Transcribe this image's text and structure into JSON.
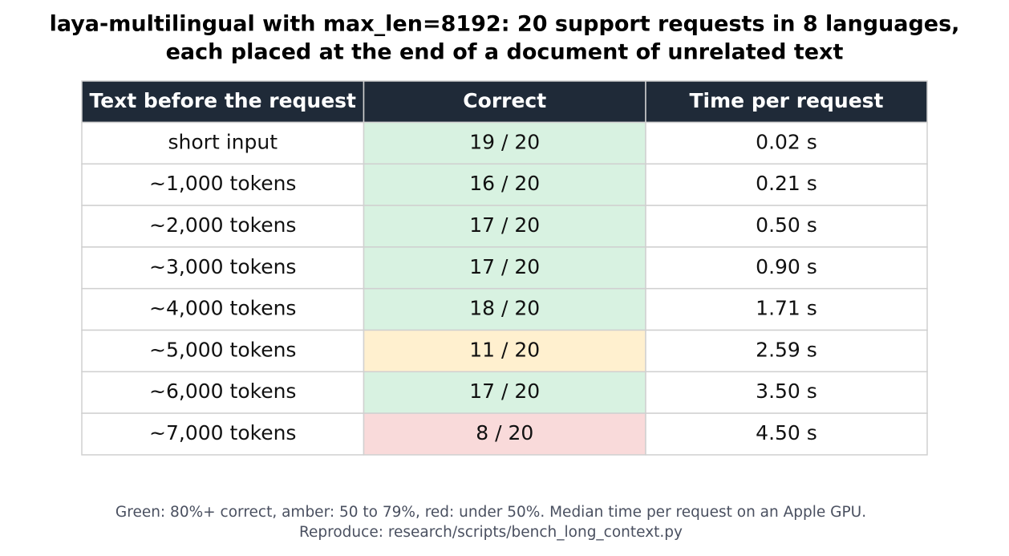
{
  "title": [
    "laya-multilingual with max_len=8192: 20 support requests in 8 languages,",
    "each placed at the end of a document of unrelated text"
  ],
  "table": {
    "header": [
      "Text before the request",
      "Correct",
      "Time per request"
    ],
    "header_color": "#1f2a38",
    "rows": [
      [
        "short input",
        "19 / 20",
        "0.02 s"
      ],
      [
        "~1,000 tokens",
        "16 / 20",
        "0.21 s"
      ],
      [
        "~2,000 tokens",
        "17 / 20",
        "0.50 s"
      ],
      [
        "~3,000 tokens",
        "17 / 20",
        "0.90 s"
      ],
      [
        "~4,000 tokens",
        "18 / 20",
        "1.71 s"
      ],
      [
        "~5,000 tokens",
        "11 / 20",
        "2.59 s"
      ],
      [
        "~6,000 tokens",
        "17 / 20",
        "3.50 s"
      ],
      [
        "~7,000 tokens",
        "8 / 20",
        "4.50 s"
      ]
    ],
    "correct_colors": [
      "#d8f2e1",
      "#d8f2e1",
      "#d8f2e1",
      "#d8f2e1",
      "#d8f2e1",
      "#fff0cf",
      "#d8f2e1",
      "#f9dada"
    ]
  },
  "footer": [
    "Green: 80%+ correct, amber: 50 to 79%, red: under 50%. Median time per request on an Apple GPU.",
    "Reproduce: research/scripts/bench_long_context.py"
  ]
}
